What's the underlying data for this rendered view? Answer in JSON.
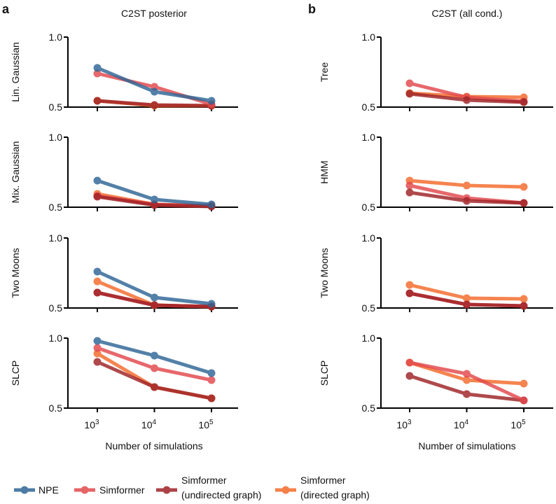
{
  "colors": {
    "NPE": "#2e6595",
    "Simformer": "#e2484c",
    "Simformer (undirected graph)": "#9e2226",
    "Simformer (directed graph)": "#f36a2a"
  },
  "columns": [
    {
      "letter": "a",
      "title": "C2ST posterior",
      "xlabel": "Number of simulations"
    },
    {
      "letter": "b",
      "title": "C2ST (all cond.)",
      "xlabel": "Number of simulations"
    }
  ],
  "legend": {
    "placement": "bottom",
    "items": [
      {
        "series": "NPE",
        "line1": "NPE",
        "line2": ""
      },
      {
        "series": "Simformer",
        "line1": "Simformer",
        "line2": ""
      },
      {
        "series": "Simformer (undirected graph)",
        "line1": "Simformer",
        "line2": "(undirected graph)"
      },
      {
        "series": "Simformer (directed graph)",
        "line1": "Simformer",
        "line2": "(directed graph)"
      }
    ]
  },
  "chart_data": [
    {
      "type": "line",
      "column": 0,
      "row": 0,
      "ylabel": "Lin. Gaussian",
      "x": [
        1000,
        10000,
        100000
      ],
      "xscale": "log",
      "xticks": [
        "3",
        "4",
        "5"
      ],
      "xtick_base": "10",
      "ylim": [
        0.5,
        1.0
      ],
      "yticks": [
        "0.5",
        "1.0"
      ],
      "series": [
        {
          "name": "Simformer (directed graph)",
          "values": [
            0.545,
            0.51,
            0.51
          ]
        },
        {
          "name": "Simformer (undirected graph)",
          "values": [
            0.545,
            0.515,
            0.51
          ]
        },
        {
          "name": "Simformer",
          "values": [
            0.74,
            0.645,
            0.52
          ]
        },
        {
          "name": "NPE",
          "values": [
            0.78,
            0.61,
            0.545
          ]
        }
      ]
    },
    {
      "type": "line",
      "column": 0,
      "row": 1,
      "ylabel": "Mix. Gaussian",
      "x": [
        1000,
        10000,
        100000
      ],
      "xscale": "log",
      "xticks": [
        "3",
        "4",
        "5"
      ],
      "xtick_base": "10",
      "ylim": [
        0.5,
        1.0
      ],
      "yticks": [
        "0.5",
        "1.0"
      ],
      "series": [
        {
          "name": "Simformer (directed graph)",
          "values": [
            0.595,
            0.52,
            0.51
          ]
        },
        {
          "name": "Simformer",
          "values": [
            0.58,
            0.52,
            0.51
          ]
        },
        {
          "name": "Simformer (undirected graph)",
          "values": [
            0.575,
            0.515,
            0.505
          ]
        },
        {
          "name": "NPE",
          "values": [
            0.69,
            0.555,
            0.52
          ]
        }
      ]
    },
    {
      "type": "line",
      "column": 0,
      "row": 2,
      "ylabel": "Two Moons",
      "x": [
        1000,
        10000,
        100000
      ],
      "xscale": "log",
      "xticks": [
        "3",
        "4",
        "5"
      ],
      "xtick_base": "10",
      "ylim": [
        0.5,
        1.0
      ],
      "yticks": [
        "0.5",
        "1.0"
      ],
      "series": [
        {
          "name": "Simformer (directed graph)",
          "values": [
            0.69,
            0.52,
            0.51
          ]
        },
        {
          "name": "Simformer",
          "values": [
            0.61,
            0.52,
            0.51
          ]
        },
        {
          "name": "Simformer (undirected graph)",
          "values": [
            0.61,
            0.52,
            0.51
          ]
        },
        {
          "name": "NPE",
          "values": [
            0.76,
            0.575,
            0.53
          ]
        }
      ]
    },
    {
      "type": "line",
      "column": 0,
      "row": 3,
      "ylabel": "SLCP",
      "x": [
        1000,
        10000,
        100000
      ],
      "xscale": "log",
      "xticks": [
        "3",
        "4",
        "5"
      ],
      "xtick_base": "10",
      "ylim": [
        0.5,
        1.0
      ],
      "yticks": [
        "0.5",
        "1.0"
      ],
      "series": [
        {
          "name": "Simformer (directed graph)",
          "values": [
            0.89,
            0.65,
            0.57
          ]
        },
        {
          "name": "Simformer (undirected graph)",
          "values": [
            0.83,
            0.65,
            0.57
          ]
        },
        {
          "name": "Simformer",
          "values": [
            0.93,
            0.785,
            0.7
          ]
        },
        {
          "name": "NPE",
          "values": [
            0.98,
            0.875,
            0.75
          ]
        }
      ]
    },
    {
      "type": "line",
      "column": 1,
      "row": 0,
      "ylabel": "Tree",
      "x": [
        1000,
        10000,
        100000
      ],
      "xscale": "log",
      "xticks": [
        "3",
        "4",
        "5"
      ],
      "xtick_base": "10",
      "ylim": [
        0.5,
        1.0
      ],
      "yticks": [
        "0.5",
        "1.0"
      ],
      "series": [
        {
          "name": "Simformer (directed graph)",
          "values": [
            0.6,
            0.575,
            0.57
          ]
        },
        {
          "name": "Simformer",
          "values": [
            0.67,
            0.57,
            0.54
          ]
        },
        {
          "name": "Simformer (undirected graph)",
          "values": [
            0.595,
            0.55,
            0.535
          ]
        }
      ]
    },
    {
      "type": "line",
      "column": 1,
      "row": 1,
      "ylabel": "HMM",
      "x": [
        1000,
        10000,
        100000
      ],
      "xscale": "log",
      "xticks": [
        "3",
        "4",
        "5"
      ],
      "xtick_base": "10",
      "ylim": [
        0.5,
        1.0
      ],
      "yticks": [
        "0.5",
        "1.0"
      ],
      "series": [
        {
          "name": "Simformer (directed graph)",
          "values": [
            0.69,
            0.655,
            0.645
          ]
        },
        {
          "name": "Simformer",
          "values": [
            0.655,
            0.565,
            0.53
          ]
        },
        {
          "name": "Simformer (undirected graph)",
          "values": [
            0.605,
            0.545,
            0.53
          ]
        }
      ]
    },
    {
      "type": "line",
      "column": 1,
      "row": 2,
      "ylabel": "Two Moons",
      "x": [
        1000,
        10000,
        100000
      ],
      "xscale": "log",
      "xticks": [
        "3",
        "4",
        "5"
      ],
      "xtick_base": "10",
      "ylim": [
        0.5,
        1.0
      ],
      "yticks": [
        "0.5",
        "1.0"
      ],
      "series": [
        {
          "name": "Simformer (directed graph)",
          "values": [
            0.665,
            0.57,
            0.565
          ]
        },
        {
          "name": "Simformer",
          "values": [
            0.605,
            0.525,
            0.515
          ]
        },
        {
          "name": "Simformer (undirected graph)",
          "values": [
            0.605,
            0.525,
            0.515
          ]
        }
      ]
    },
    {
      "type": "line",
      "column": 1,
      "row": 3,
      "ylabel": "SLCP",
      "x": [
        1000,
        10000,
        100000
      ],
      "xscale": "log",
      "xticks": [
        "3",
        "4",
        "5"
      ],
      "xtick_base": "10",
      "ylim": [
        0.5,
        1.0
      ],
      "yticks": [
        "0.5",
        "1.0"
      ],
      "series": [
        {
          "name": "Simformer (directed graph)",
          "values": [
            0.825,
            0.7,
            0.675
          ]
        },
        {
          "name": "Simformer (undirected graph)",
          "values": [
            0.73,
            0.6,
            0.555
          ]
        },
        {
          "name": "Simformer",
          "values": [
            0.825,
            0.745,
            0.555
          ]
        }
      ]
    }
  ]
}
